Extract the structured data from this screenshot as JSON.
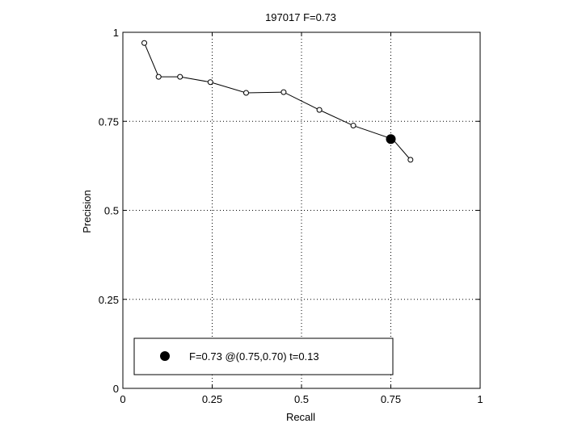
{
  "chart_data": {
    "type": "line",
    "title": "197017 F=0.73",
    "xlabel": "Recall",
    "ylabel": "Precision",
    "xlim": [
      0,
      1
    ],
    "ylim": [
      0,
      1
    ],
    "grid": true,
    "x_ticks": [
      0,
      0.25,
      0.5,
      0.75,
      1
    ],
    "x_tick_labels": [
      "0",
      "0.25",
      "0.5",
      "0.75",
      "1"
    ],
    "y_ticks": [
      0,
      0.25,
      0.5,
      0.75,
      1
    ],
    "y_tick_labels": [
      "0",
      "0.25",
      "0.5",
      "0.75",
      "1"
    ],
    "series": [
      {
        "x": [
          0.06,
          0.1,
          0.16,
          0.245,
          0.345,
          0.45,
          0.55,
          0.645,
          0.755,
          0.805
        ],
        "y": [
          0.97,
          0.875,
          0.875,
          0.86,
          0.83,
          0.832,
          0.782,
          0.738,
          0.7,
          0.642
        ]
      }
    ],
    "highlight_point": {
      "x": 0.75,
      "y": 0.7
    },
    "legend": {
      "position": "bottom-left",
      "entries": [
        "F=0.73 @(0.75,0.70) t=0.13"
      ]
    }
  }
}
